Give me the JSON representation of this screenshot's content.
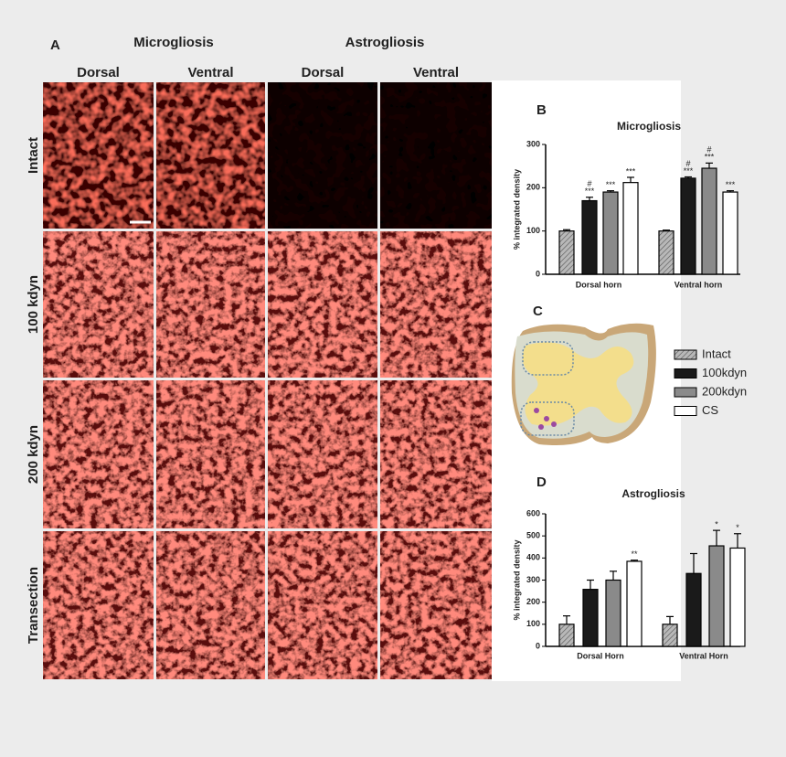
{
  "panel_a": {
    "label": "A",
    "groups": [
      "Microgliosis",
      "Astrogliosis"
    ],
    "columns": [
      "Dorsal",
      "Ventral",
      "Dorsal",
      "Ventral"
    ],
    "rows": [
      "Intact",
      "100 kdyn",
      "200 kdyn",
      "Transection"
    ]
  },
  "panel_labels": {
    "b": "B",
    "c": "C",
    "d": "D"
  },
  "chart_data": [
    {
      "type": "bar",
      "title": "Microgliosis",
      "y_label": "% integrated density",
      "categories": [
        "Dorsal horn",
        "Ventral horn"
      ],
      "series": [
        {
          "name": "Intact",
          "color": "#b0b0b0",
          "pattern": "hatched",
          "values": [
            100,
            100
          ],
          "errors": [
            3,
            2
          ],
          "significance": [
            null,
            null
          ]
        },
        {
          "name": "100kdyn",
          "color": "#1a1a1a",
          "values": [
            170,
            222
          ],
          "errors": [
            8,
            3
          ],
          "significance": [
            [
              "#",
              "***"
            ],
            [
              "#",
              "***"
            ]
          ]
        },
        {
          "name": "200kdyn",
          "color": "#8a8a8a",
          "values": [
            190,
            245
          ],
          "errors": [
            3,
            12
          ],
          "significance": [
            [
              "***"
            ],
            [
              "#",
              "***"
            ]
          ]
        },
        {
          "name": "CS",
          "color": "#ffffff",
          "values": [
            212,
            190
          ],
          "errors": [
            12,
            3
          ],
          "significance": [
            [
              "***"
            ],
            [
              "***"
            ]
          ]
        }
      ],
      "ylim": [
        0,
        300
      ],
      "yticks": [
        0,
        100,
        200,
        300
      ]
    },
    {
      "type": "bar",
      "title": "Astrogliosis",
      "y_label": "% integrated density",
      "categories": [
        "Dorsal Horn",
        "Ventral Horn"
      ],
      "series": [
        {
          "color": "#b0b0b0",
          "pattern": "hatched",
          "values": [
            100,
            100
          ],
          "errors": [
            38,
            35
          ],
          "significance": [
            null,
            null
          ]
        },
        {
          "color": "#1a1a1a",
          "values": [
            258,
            330
          ],
          "errors": [
            42,
            90
          ],
          "significance": [
            null,
            null
          ]
        },
        {
          "color": "#8a8a8a",
          "values": [
            300,
            455
          ],
          "errors": [
            40,
            70
          ],
          "significance": [
            null,
            [
              "*"
            ]
          ]
        },
        {
          "color": "#ffffff",
          "values": [
            385,
            445
          ],
          "errors": [
            5,
            65
          ],
          "significance": [
            [
              "**"
            ],
            [
              "*"
            ]
          ]
        }
      ],
      "ylim": [
        0,
        600
      ],
      "yticks": [
        0,
        100,
        200,
        300,
        400,
        500,
        600
      ]
    }
  ]
}
